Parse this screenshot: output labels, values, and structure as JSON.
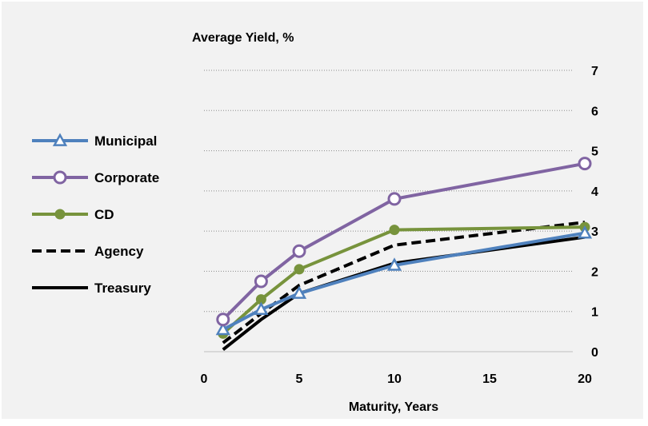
{
  "chart_data": {
    "type": "line",
    "title": "",
    "ylabel": "Average Yield, %",
    "xlabel": "Maturity, Years",
    "xlim": [
      0,
      20
    ],
    "ylim": [
      0,
      7
    ],
    "x_ticks": [
      "0",
      "5",
      "10",
      "15",
      "20"
    ],
    "y_ticks": [
      "0",
      "1",
      "2",
      "3",
      "4",
      "5",
      "6",
      "7"
    ],
    "y_axis_side": "right",
    "grid": "horizontal dotted",
    "legend_position": "left",
    "series": [
      {
        "name": "Municipal",
        "color": "#4f81bd",
        "marker": "triangle-open",
        "dash": "solid",
        "x": [
          1,
          3,
          5,
          10,
          20
        ],
        "y": [
          0.55,
          1.05,
          1.45,
          2.15,
          2.95
        ]
      },
      {
        "name": "Corporate",
        "color": "#8064a2",
        "marker": "circle-open",
        "dash": "solid",
        "x": [
          1,
          3,
          5,
          10,
          20
        ],
        "y": [
          0.8,
          1.75,
          2.5,
          3.8,
          4.68
        ]
      },
      {
        "name": "CD",
        "color": "#77933c",
        "marker": "circle-filled",
        "dash": "solid",
        "x": [
          1,
          3,
          5,
          10,
          20
        ],
        "y": [
          0.45,
          1.3,
          2.05,
          3.03,
          3.1
        ]
      },
      {
        "name": "Agency",
        "color": "#000000",
        "marker": "none",
        "dash": "dashed",
        "x": [
          1,
          3,
          5,
          10,
          20
        ],
        "y": [
          0.22,
          0.95,
          1.65,
          2.65,
          3.22
        ]
      },
      {
        "name": "Treasury",
        "color": "#000000",
        "marker": "none",
        "dash": "solid",
        "x": [
          1,
          3,
          5,
          10,
          20
        ],
        "y": [
          0.05,
          0.8,
          1.45,
          2.2,
          2.85
        ]
      }
    ]
  }
}
